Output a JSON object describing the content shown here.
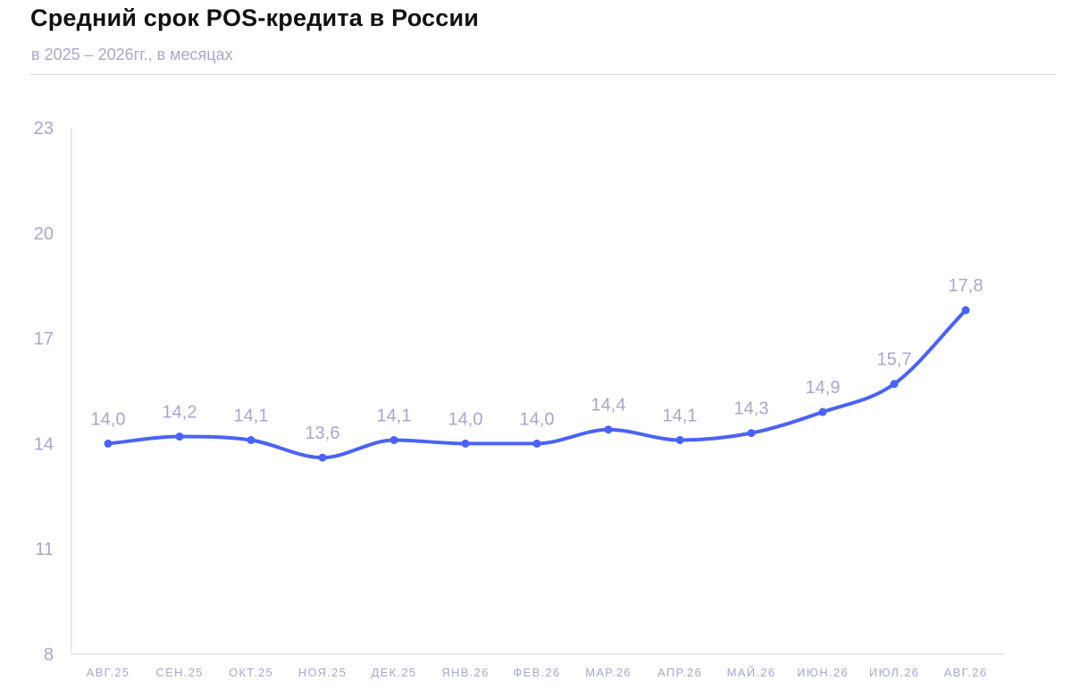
{
  "header": {
    "title": "Средний срок POS-кредита в России",
    "subtitle": "в 2025 – 2026гг., в месяцах"
  },
  "chart_data": {
    "type": "line",
    "title": "Средний срок POS-кредита в России",
    "subtitle": "в 2025 – 2026гг., в месяцах",
    "xlabel": "",
    "ylabel": "",
    "categories": [
      "АВГ.25",
      "СЕН.25",
      "ОКТ.25",
      "НОЯ.25",
      "ДЕК.25",
      "ЯНВ.26",
      "ФЕВ.26",
      "МАР.26",
      "АПР.26",
      "МАЙ.26",
      "ИЮН.26",
      "ИЮЛ.26",
      "АВГ.26"
    ],
    "series": [
      {
        "values": [
          14.0,
          14.2,
          14.1,
          13.6,
          14.1,
          14.0,
          14.0,
          14.4,
          14.1,
          14.3,
          14.9,
          15.7,
          17.8
        ],
        "value_labels": [
          "14,0",
          "14,2",
          "14,1",
          "13,6",
          "14,1",
          "14,0",
          "14,0",
          "14,4",
          "14,1",
          "14,3",
          "14,9",
          "15,7",
          "17,8"
        ],
        "color": "#4a63f5"
      }
    ],
    "ylim": [
      8,
      23
    ],
    "yticks": [
      8,
      11,
      14,
      17,
      20,
      23
    ],
    "ytick_labels": [
      "8",
      "11",
      "14",
      "17",
      "20",
      "23"
    ],
    "grid": false,
    "smooth": true,
    "colors": {
      "line": "#4a63f5",
      "labels": "#a6a8c9",
      "axis": "#d6d7e2"
    }
  }
}
